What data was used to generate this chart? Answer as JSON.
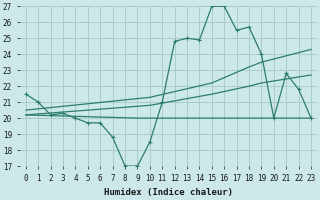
{
  "xlabel": "Humidex (Indice chaleur)",
  "background_color": "#cce8e8",
  "grid_color": "#aacccc",
  "line_color": "#2d7d6e",
  "xlim": [
    -0.5,
    23.5
  ],
  "ylim": [
    17,
    27
  ],
  "xticks": [
    0,
    1,
    2,
    3,
    4,
    5,
    6,
    7,
    8,
    9,
    10,
    11,
    12,
    13,
    14,
    15,
    16,
    17,
    18,
    19,
    20,
    21,
    22,
    23
  ],
  "yticks": [
    17,
    18,
    19,
    20,
    21,
    22,
    23,
    24,
    25,
    26,
    27
  ],
  "line1_x": [
    0,
    1,
    2,
    3,
    4,
    5,
    6,
    7,
    8,
    9,
    10,
    11,
    12,
    13,
    14,
    15,
    16,
    17,
    18,
    19,
    20,
    21,
    22,
    23
  ],
  "line1_y": [
    21.5,
    21.0,
    20.2,
    20.3,
    20.0,
    19.7,
    19.7,
    18.8,
    17.0,
    17.0,
    18.5,
    21.0,
    24.8,
    25.0,
    24.9,
    27.0,
    27.0,
    25.5,
    25.7,
    24.0,
    20.0,
    22.8,
    21.8,
    20.0
  ],
  "line2_x": [
    0,
    10,
    15,
    18,
    19,
    23
  ],
  "line2_y": [
    20.5,
    21.3,
    22.2,
    23.2,
    23.5,
    24.3
  ],
  "line3_x": [
    0,
    10,
    15,
    18,
    19,
    23
  ],
  "line3_y": [
    20.2,
    20.8,
    21.5,
    22.0,
    22.2,
    22.7
  ],
  "line4_x": [
    0,
    9,
    20,
    23
  ],
  "line4_y": [
    20.2,
    20.0,
    20.0,
    20.0
  ]
}
